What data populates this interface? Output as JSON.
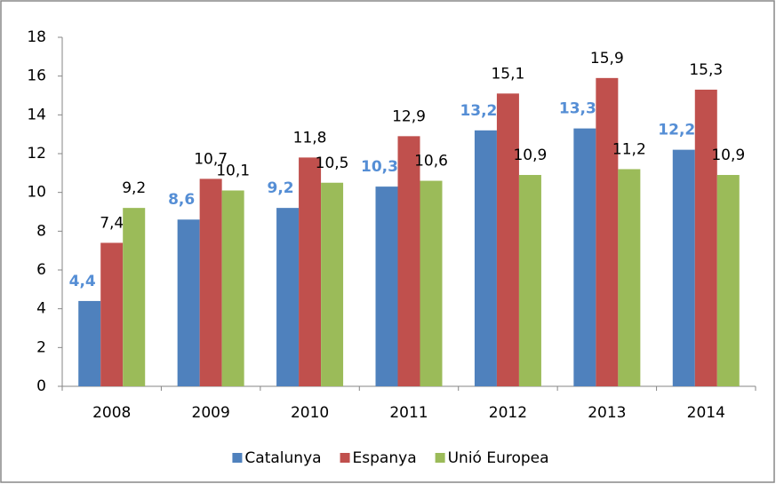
{
  "chart_data": {
    "type": "bar",
    "categories": [
      "2008",
      "2009",
      "2010",
      "2011",
      "2012",
      "2013",
      "2014"
    ],
    "series": [
      {
        "name": "Catalunya",
        "color": "#4f81bd",
        "label_color": "#558ed5",
        "label_bold": true,
        "values": [
          4.4,
          8.6,
          9.2,
          10.3,
          13.2,
          13.3,
          12.2
        ],
        "value_labels": [
          "4,4",
          "8,6",
          "9,2",
          "10,3",
          "13,2",
          "13,3",
          "12,2"
        ]
      },
      {
        "name": "Espanya",
        "color": "#c0504d",
        "label_color": "#000000",
        "label_bold": false,
        "values": [
          7.4,
          10.7,
          11.8,
          12.9,
          15.1,
          15.9,
          15.3
        ],
        "value_labels": [
          "7,4",
          "10,7",
          "11,8",
          "12,9",
          "15,1",
          "15,9",
          "15,3"
        ]
      },
      {
        "name": "Unió Europea",
        "color": "#9bbb59",
        "label_color": "#000000",
        "label_bold": false,
        "values": [
          9.2,
          10.1,
          10.5,
          10.6,
          10.9,
          11.2,
          10.9
        ],
        "value_labels": [
          "9,2",
          "10,1",
          "10,5",
          "10,6",
          "10,9",
          "11,2",
          "10,9"
        ]
      }
    ],
    "ylim": [
      0,
      18
    ],
    "yticks": [
      0,
      2,
      4,
      6,
      8,
      10,
      12,
      14,
      16,
      18
    ],
    "grid": false,
    "legend": "bottom"
  }
}
